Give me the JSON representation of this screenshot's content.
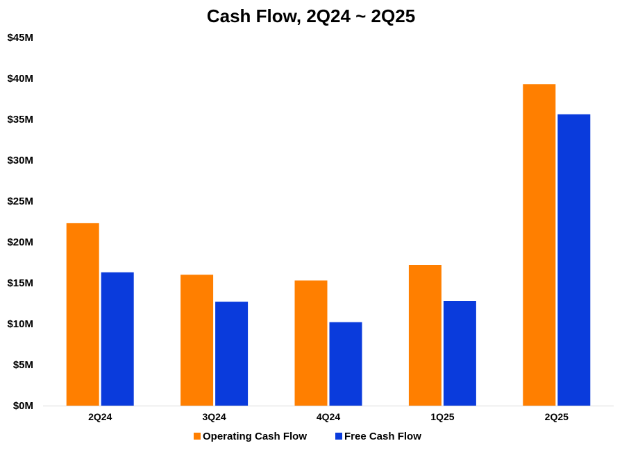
{
  "chart_data": {
    "type": "bar",
    "title": "Cash Flow, 2Q24 ~ 2Q25",
    "categories": [
      "2Q24",
      "3Q24",
      "4Q24",
      "1Q25",
      "2Q25"
    ],
    "series": [
      {
        "name": "Operating Cash Flow",
        "color": "#FF7F00",
        "values": [
          22.3,
          16.0,
          15.3,
          17.2,
          39.3
        ]
      },
      {
        "name": "Free Cash Flow",
        "color": "#0A3BDC",
        "values": [
          16.3,
          12.7,
          10.2,
          12.8,
          35.6
        ]
      }
    ],
    "ylim": [
      0,
      45
    ],
    "yticks": [
      0,
      5,
      10,
      15,
      20,
      25,
      30,
      35,
      40,
      45
    ],
    "ytick_labels": [
      "$0M",
      "$5M",
      "$10M",
      "$15M",
      "$20M",
      "$25M",
      "$30M",
      "$35M",
      "$40M",
      "$45M"
    ],
    "grid": false,
    "legend": "bottom"
  }
}
